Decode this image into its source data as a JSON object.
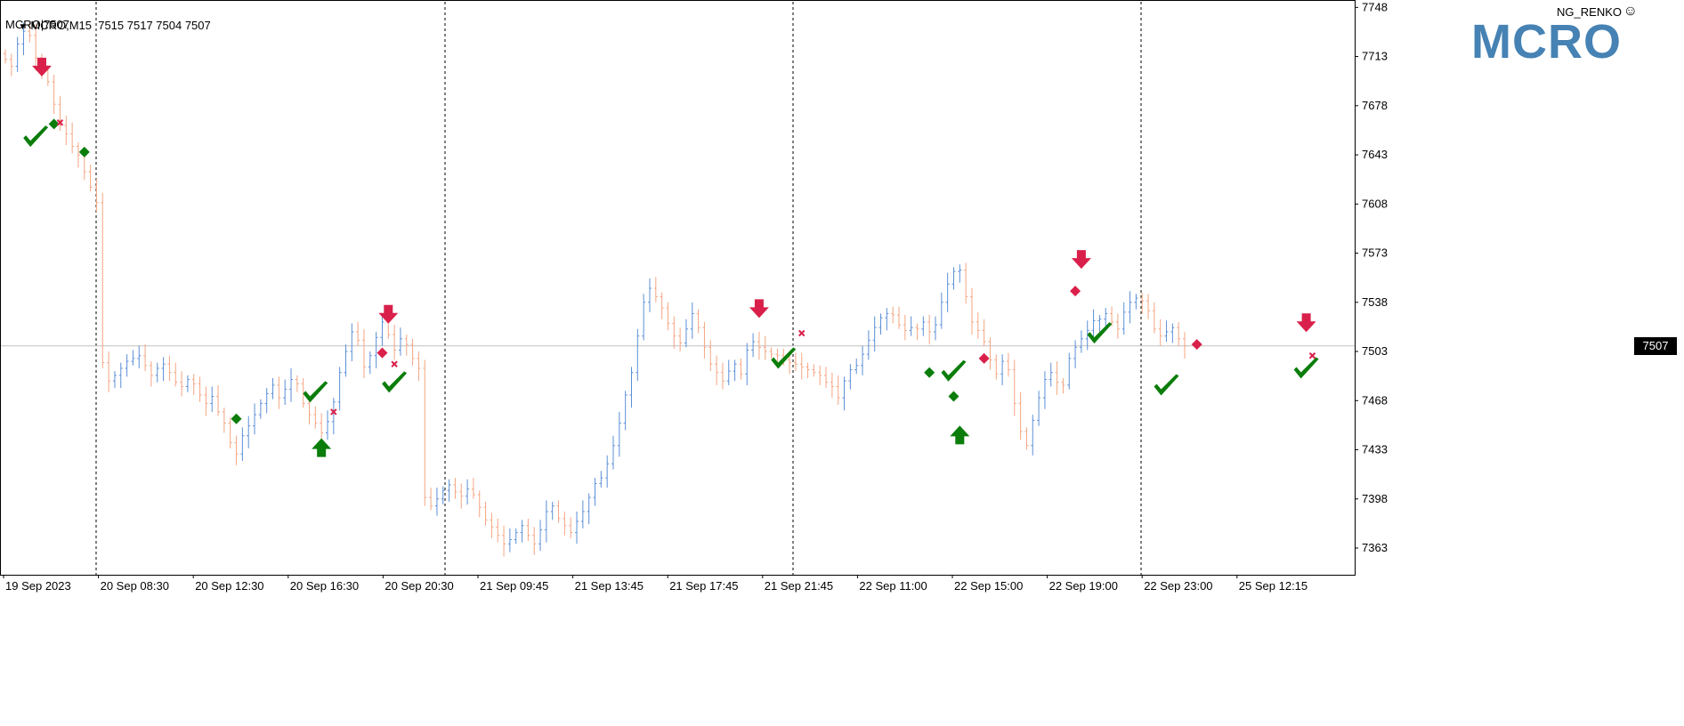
{
  "header": {
    "symbol_timeframe": "MCRO,M15",
    "ohlc": "7515 7517 7504 7507",
    "subtitle": "MCRO|7507",
    "indicator_name": "NG_RENKO",
    "watermark": "MCRO"
  },
  "colors": {
    "bull": "#5b8fd6",
    "bear": "#f4a582",
    "neutral": "#000000",
    "signal_green": "#0a7d0a",
    "signal_red": "#d9204a",
    "watermark": "#4682b4"
  },
  "current_price": {
    "value": 7507,
    "label": "7507"
  },
  "chart_data": {
    "type": "line",
    "y_axis_ticks": [
      7748,
      7713,
      7678,
      7643,
      7608,
      7573,
      7538,
      7503,
      7468,
      7433,
      7398,
      7363
    ],
    "y_axis_tick_labels": [
      "7748",
      "7713",
      "7678",
      "7643",
      "7608",
      "7573",
      "7538",
      "7503",
      "7468",
      "7433",
      "7398",
      "7363"
    ],
    "ylim": [
      7344,
      7752
    ],
    "x_tick_labels": [
      "19 Sep 2023",
      "20 Sep 08:30",
      "20 Sep 12:30",
      "20 Sep 16:30",
      "20 Sep 20:30",
      "21 Sep 09:45",
      "21 Sep 13:45",
      "21 Sep 17:45",
      "21 Sep 21:45",
      "22 Sep 11:00",
      "22 Sep 15:00",
      "22 Sep 19:00",
      "22 Sep 23:00",
      "25 Sep 12:15"
    ],
    "grid": false,
    "series": [
      {
        "values": [
          7711,
          7706,
          7722,
          7731,
          7728,
          7712,
          7703,
          7695,
          7679,
          7664,
          7658,
          7649,
          7643,
          7631,
          7620,
          7609,
          7495,
          7482,
          7486,
          7491,
          7496,
          7498,
          7500,
          7493,
          7486,
          7491,
          7494,
          7488,
          7481,
          7478,
          7483,
          7480,
          7472,
          7466,
          7471,
          7460,
          7452,
          7438,
          7430,
          7443,
          7450,
          7458,
          7466,
          7473,
          7479,
          7470,
          7476,
          7483,
          7480,
          7466,
          7458,
          7452,
          7445,
          7453,
          7467,
          7488,
          7503,
          7517,
          7511,
          7492,
          7500,
          7513,
          7524,
          7515,
          7504,
          7512,
          7508,
          7498,
          7491,
          7399,
          7393,
          7398,
          7404,
          7408,
          7403,
          7400,
          7405,
          7401,
          7392,
          7383,
          7378,
          7372,
          7366,
          7369,
          7374,
          7379,
          7372,
          7366,
          7376,
          7389,
          7393,
          7384,
          7379,
          7374,
          7382,
          7389,
          7399,
          7409,
          7413,
          7423,
          7436,
          7452,
          7472,
          7488,
          7514,
          7538,
          7548,
          7542,
          7534,
          7523,
          7514,
          7509,
          7519,
          7530,
          7520,
          7506,
          7494,
          7488,
          7482,
          7489,
          7494,
          7487,
          7504,
          7510,
          7506,
          7503,
          7501,
          7500,
          7497,
          7495,
          7494,
          7492,
          7490,
          7488,
          7486,
          7481,
          7478,
          7470,
          7482,
          7490,
          7493,
          7501,
          7511,
          7520,
          7527,
          7530,
          7529,
          7522,
          7518,
          7520,
          7519,
          7524,
          7517,
          7522,
          7538,
          7551,
          7560,
          7561,
          7542,
          7524,
          7518,
          7510,
          7497,
          7487,
          7496,
          7490,
          7466,
          7446,
          7436,
          7454,
          7470,
          7483,
          7488,
          7481,
          7479,
          7498,
          7506,
          7512,
          7518,
          7525,
          7526,
          7530,
          7524,
          7519,
          7531,
          7538,
          7541,
          7539,
          7532,
          7519,
          7514,
          7517,
          7520,
          7512,
          7507
        ]
      }
    ],
    "signals": [
      {
        "kind": "arrow-down",
        "index": 6,
        "price": 7702
      },
      {
        "kind": "check",
        "index": 5,
        "price": 7655
      },
      {
        "kind": "diamond-green",
        "index": 8,
        "price": 7665
      },
      {
        "kind": "cross",
        "index": 9,
        "price": 7666
      },
      {
        "kind": "diamond-green",
        "index": 13,
        "price": 7645
      },
      {
        "kind": "check",
        "index": 51,
        "price": 7473
      },
      {
        "kind": "diamond-green",
        "index": 38,
        "price": 7455
      },
      {
        "kind": "arrow-up",
        "index": 52,
        "price": 7438
      },
      {
        "kind": "cross",
        "index": 54,
        "price": 7460
      },
      {
        "kind": "arrow-down",
        "index": 63,
        "price": 7526
      },
      {
        "kind": "diamond-red",
        "index": 62,
        "price": 7502
      },
      {
        "kind": "cross",
        "index": 64,
        "price": 7494
      },
      {
        "kind": "check",
        "index": 64,
        "price": 7480
      },
      {
        "kind": "arrow-down",
        "index": 124,
        "price": 7530
      },
      {
        "kind": "check",
        "index": 128,
        "price": 7497
      },
      {
        "kind": "cross",
        "index": 131,
        "price": 7516
      },
      {
        "kind": "diamond-green",
        "index": 152,
        "price": 7488
      },
      {
        "kind": "check",
        "index": 156,
        "price": 7488
      },
      {
        "kind": "diamond-green",
        "index": 156,
        "price": 7471
      },
      {
        "kind": "arrow-up",
        "index": 157,
        "price": 7447
      },
      {
        "kind": "diamond-red",
        "index": 161,
        "price": 7498
      },
      {
        "kind": "arrow-down",
        "index": 177,
        "price": 7565
      },
      {
        "kind": "diamond-red",
        "index": 176,
        "price": 7546
      },
      {
        "kind": "check",
        "index": 180,
        "price": 7515
      },
      {
        "kind": "check",
        "index": 191,
        "price": 7478
      },
      {
        "kind": "diamond-red",
        "index": 196,
        "price": 7508
      },
      {
        "kind": "arrow-down",
        "index": 214,
        "price": 7520
      },
      {
        "kind": "check",
        "index": 214,
        "price": 7490
      },
      {
        "kind": "cross",
        "index": 215,
        "price": 7500
      }
    ]
  }
}
